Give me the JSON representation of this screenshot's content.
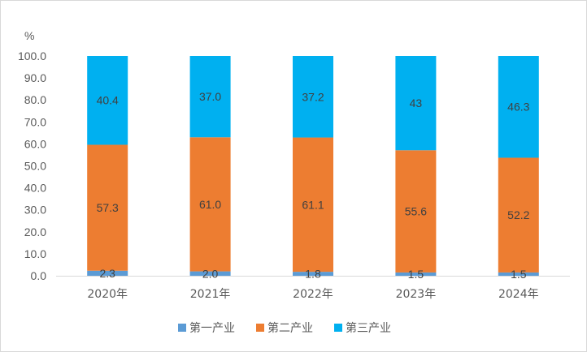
{
  "chart_data": {
    "type": "bar",
    "stacked": true,
    "unit_label": "%",
    "categories": [
      "2020年",
      "2021年",
      "2022年",
      "2023年",
      "2024年"
    ],
    "ylim": [
      0,
      100
    ],
    "y_ticks": [
      "0.0",
      "10.0",
      "20.0",
      "30.0",
      "40.0",
      "50.0",
      "60.0",
      "70.0",
      "80.0",
      "90.0",
      "100.0"
    ],
    "grid": false,
    "legend_position": "bottom",
    "series": [
      {
        "name": "第一产业",
        "color": "#5b9bd5",
        "values": [
          2.3,
          2.0,
          1.8,
          1.5,
          1.5
        ],
        "labels": [
          "2.3",
          "2.0",
          "1.8",
          "1.5",
          "1.5"
        ]
      },
      {
        "name": "第二产业",
        "color": "#ed7d31",
        "values": [
          57.3,
          61.0,
          61.1,
          55.6,
          52.2
        ],
        "labels": [
          "57.3",
          "61.0",
          "61.1",
          "55.6",
          "52.2"
        ]
      },
      {
        "name": "第三产业",
        "color": "#00b0f0",
        "values": [
          40.4,
          37.0,
          37.2,
          43,
          46.3
        ],
        "labels": [
          "40.4",
          "37.0",
          "37.2",
          "43",
          "46.3"
        ]
      }
    ]
  }
}
